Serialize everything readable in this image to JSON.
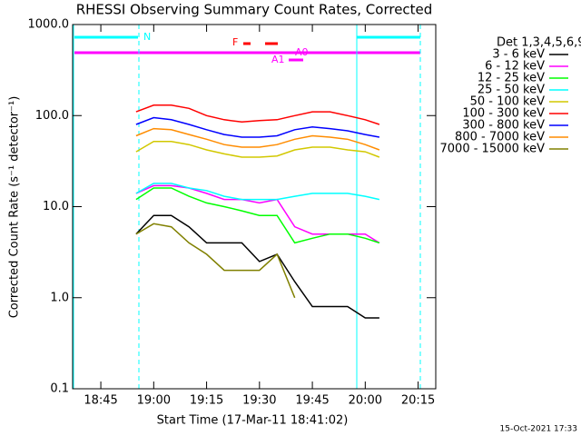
{
  "chart_data": {
    "type": "line",
    "title": "RHESSI Observing Summary Count Rates, Corrected",
    "x_label": "Start Time (17-Mar-11 18:41:02)",
    "y_label": "Corrected Count Rate (s⁻¹ detector⁻¹)",
    "legend_title": "Det 1,3,4,5,6,9",
    "footer": "15-Oct-2021 17:33",
    "annotations": [
      "N",
      "F",
      "A0",
      "A1"
    ],
    "log_y": true,
    "xlim": [
      "18:37",
      "20:20"
    ],
    "xticks": [
      "18:45",
      "19:00",
      "19:15",
      "19:30",
      "19:45",
      "20:00",
      "20:15"
    ],
    "ylim": [
      0.1,
      1000
    ],
    "yticks": [
      {
        "value": 1000,
        "label": "1000.0"
      },
      {
        "value": 100,
        "label": "100.0"
      },
      {
        "value": 10,
        "label": "10.0"
      },
      {
        "value": 1,
        "label": "1.0"
      },
      0.1
    ],
    "x": [
      "18:55",
      "19:00",
      "19:05",
      "19:10",
      "19:15",
      "19:20",
      "19:25",
      "19:30",
      "19:35",
      "19:40",
      "19:45",
      "19:50",
      "19:55",
      "20:00",
      "20:04"
    ],
    "series": [
      {
        "name": "3 - 6 keV",
        "color": "#000000",
        "values": [
          5,
          8,
          8,
          6,
          4,
          4,
          4,
          2.5,
          3,
          1.5,
          0.8,
          0.8,
          0.8,
          0.6,
          0.6
        ]
      },
      {
        "name": "6 - 12 keV",
        "color": "#ff00ff",
        "values": [
          14,
          17,
          17,
          16,
          14,
          12,
          12,
          11,
          12,
          6,
          5,
          5,
          5,
          5,
          4
        ]
      },
      {
        "name": "12 - 25 keV",
        "color": "#00ff00",
        "values": [
          12,
          16,
          16,
          13,
          11,
          10,
          9,
          8,
          8,
          4,
          4.5,
          5,
          5,
          4.5,
          4
        ]
      },
      {
        "name": "25 - 50 keV",
        "color": "#00ffff",
        "values": [
          14,
          18,
          18,
          16,
          15,
          13,
          12,
          12,
          12,
          13,
          14,
          14,
          14,
          13,
          12
        ]
      },
      {
        "name": "50 - 100 keV",
        "color": "#d2c800",
        "values": [
          40,
          52,
          52,
          48,
          42,
          38,
          35,
          35,
          36,
          42,
          45,
          45,
          42,
          40,
          35
        ]
      },
      {
        "name": "100 - 300 keV",
        "color": "#ff0000",
        "values": [
          110,
          130,
          130,
          120,
          100,
          90,
          85,
          88,
          90,
          100,
          110,
          110,
          100,
          90,
          80
        ]
      },
      {
        "name": "300 - 800 keV",
        "color": "#0000ff",
        "values": [
          80,
          95,
          90,
          80,
          70,
          62,
          58,
          58,
          60,
          70,
          75,
          72,
          68,
          62,
          58
        ]
      },
      {
        "name": "800 - 7000 keV",
        "color": "#ff8c00",
        "values": [
          60,
          72,
          70,
          62,
          55,
          48,
          45,
          45,
          48,
          55,
          60,
          58,
          55,
          48,
          42
        ]
      },
      {
        "name": "7000 - 15000 keV",
        "color": "#808000",
        "values": [
          5,
          6.5,
          6,
          4,
          3,
          2,
          2,
          2,
          3,
          1,
          null,
          null,
          null,
          null,
          null
        ]
      }
    ]
  }
}
